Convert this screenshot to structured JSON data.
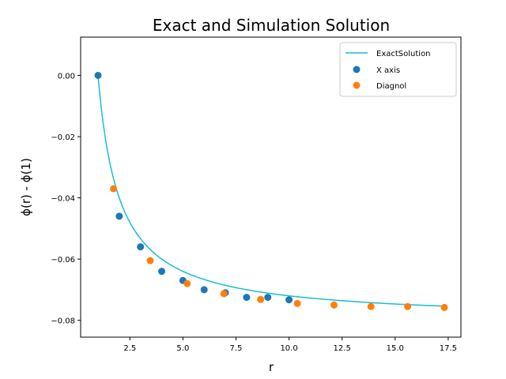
{
  "chart_data": {
    "type": "scatter",
    "title": "Exact and Simulation Solution",
    "xlabel": "r",
    "ylabel": "ϕ(r) - ϕ(1)",
    "xlim": [
      0.18,
      18.1
    ],
    "ylim": [
      -0.0855,
      0.0125
    ],
    "xticks": [
      2.5,
      5.0,
      7.5,
      10.0,
      12.5,
      15.0,
      17.5
    ],
    "xtick_labels": [
      "2.5",
      "5.0",
      "7.5",
      "10.0",
      "12.5",
      "15.0",
      "17.5"
    ],
    "yticks": [
      0.0,
      -0.02,
      -0.04,
      -0.06,
      -0.08
    ],
    "ytick_labels": [
      "0.00",
      "−0.02",
      "−0.04",
      "−0.06",
      "−0.08"
    ],
    "grid": false,
    "legend_position": "top-right",
    "series": [
      {
        "name": "ExactSolution",
        "kind": "line",
        "color": "#17becf",
        "formula": "phi(r) - phi(1) = -0.08 * (1 - 1/r)",
        "x_range": [
          1.0,
          17.32
        ]
      },
      {
        "name": "X axis",
        "kind": "scatter",
        "color": "#1f77b4",
        "x": [
          1,
          2,
          3,
          4,
          5,
          6,
          7,
          8,
          9,
          10
        ],
        "y": [
          0.0,
          -0.046,
          -0.056,
          -0.064,
          -0.067,
          -0.07,
          -0.071,
          -0.0725,
          -0.0725,
          -0.0733
        ]
      },
      {
        "name": "Diagnol",
        "kind": "scatter",
        "color": "#ff7f0e",
        "x": [
          1.73,
          3.46,
          5.2,
          6.93,
          8.66,
          10.39,
          12.12,
          13.86,
          15.59,
          17.32
        ],
        "y": [
          -0.037,
          -0.0605,
          -0.068,
          -0.0713,
          -0.0732,
          -0.0745,
          -0.075,
          -0.0755,
          -0.0755,
          -0.0758
        ]
      }
    ]
  }
}
